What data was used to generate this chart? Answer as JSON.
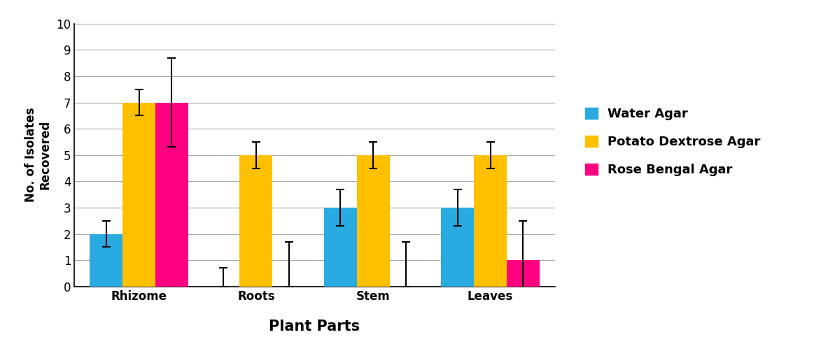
{
  "categories": [
    "Rhizome",
    "Roots",
    "Stem",
    "Leaves"
  ],
  "series": [
    {
      "name": "Water Agar",
      "color": "#29ABE2",
      "values": [
        2,
        0,
        3,
        3
      ],
      "errors": [
        0.5,
        0.7,
        0.7,
        0.7
      ]
    },
    {
      "name": "Potato Dextrose Agar",
      "color": "#FFC000",
      "values": [
        7,
        5,
        5,
        5
      ],
      "errors": [
        0.5,
        0.5,
        0.5,
        0.5
      ]
    },
    {
      "name": "Rose Bengal Agar",
      "color": "#FF0080",
      "values": [
        7,
        0,
        0,
        1
      ],
      "errors": [
        1.7,
        1.7,
        1.7,
        1.5
      ]
    }
  ],
  "ylabel": "No. of Isolates\nRecovered",
  "xlabel": "Plant Parts",
  "ylim": [
    0,
    10
  ],
  "yticks": [
    0,
    1,
    2,
    3,
    4,
    5,
    6,
    7,
    8,
    9,
    10
  ],
  "bar_width": 0.28,
  "ylabel_fontsize": 12,
  "xlabel_fontsize": 15,
  "tick_fontsize": 12,
  "legend_fontsize": 13,
  "grid_color": "#AAAAAA",
  "grid_linewidth": 0.8
}
